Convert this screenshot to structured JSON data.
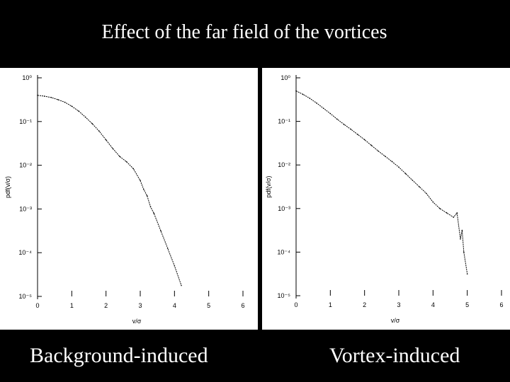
{
  "slide": {
    "title": "Effect of the far field of the vortices",
    "caption_left": "Background-induced",
    "caption_right": "Vortex-induced"
  },
  "chart_data": [
    {
      "type": "line",
      "caption": "Background-induced",
      "xlabel": "v/σ",
      "ylabel": "pdf(v/σ)",
      "xlim": [
        0,
        6
      ],
      "ylim": [
        -5,
        0
      ],
      "yscale": "log",
      "x_ticks": [
        "0",
        "1",
        "2",
        "3",
        "4",
        "5",
        "6"
      ],
      "y_ticks": [
        "10⁰",
        "10⁻¹",
        "10⁻²",
        "10⁻³",
        "10⁻⁴",
        "10⁻⁵"
      ],
      "grid": false,
      "series": [
        {
          "x": [
            0,
            0.2,
            0.4,
            0.6,
            0.8,
            1.0,
            1.2,
            1.4,
            1.6,
            1.8,
            2.0,
            2.2,
            2.4,
            2.6,
            2.8,
            3.0,
            3.1,
            3.2,
            3.3,
            3.4,
            3.6,
            3.8,
            4.0,
            4.2
          ],
          "log10_y": [
            -0.4,
            -0.42,
            -0.45,
            -0.5,
            -0.56,
            -0.65,
            -0.76,
            -0.9,
            -1.05,
            -1.22,
            -1.42,
            -1.62,
            -1.8,
            -1.92,
            -2.08,
            -2.35,
            -2.55,
            -2.7,
            -2.95,
            -3.1,
            -3.5,
            -3.9,
            -4.3,
            -4.75
          ]
        }
      ]
    },
    {
      "type": "line",
      "caption": "Vortex-induced",
      "xlabel": "v/σ",
      "ylabel": "pdf(v/σ)",
      "xlim": [
        0,
        6
      ],
      "ylim": [
        -5,
        0
      ],
      "yscale": "log",
      "x_ticks": [
        "0",
        "1",
        "2",
        "3",
        "4",
        "5",
        "6"
      ],
      "y_ticks": [
        "10⁰",
        "10⁻¹",
        "10⁻²",
        "10⁻³",
        "10⁻⁴",
        "10⁻⁵"
      ],
      "grid": false,
      "series": [
        {
          "x": [
            0,
            0.2,
            0.4,
            0.6,
            0.8,
            1.0,
            1.2,
            1.4,
            1.6,
            1.8,
            2.0,
            2.2,
            2.4,
            2.6,
            2.8,
            3.0,
            3.2,
            3.4,
            3.6,
            3.8,
            4.0,
            4.2,
            4.4,
            4.6,
            4.7,
            4.8,
            4.85,
            4.9,
            5.0
          ],
          "log10_y": [
            -0.3,
            -0.38,
            -0.47,
            -0.58,
            -0.7,
            -0.82,
            -0.95,
            -1.07,
            -1.18,
            -1.3,
            -1.42,
            -1.55,
            -1.68,
            -1.8,
            -1.92,
            -2.05,
            -2.2,
            -2.35,
            -2.5,
            -2.65,
            -2.85,
            -3.0,
            -3.1,
            -3.2,
            -3.1,
            -3.7,
            -3.5,
            -4.0,
            -4.5
          ]
        }
      ]
    }
  ]
}
